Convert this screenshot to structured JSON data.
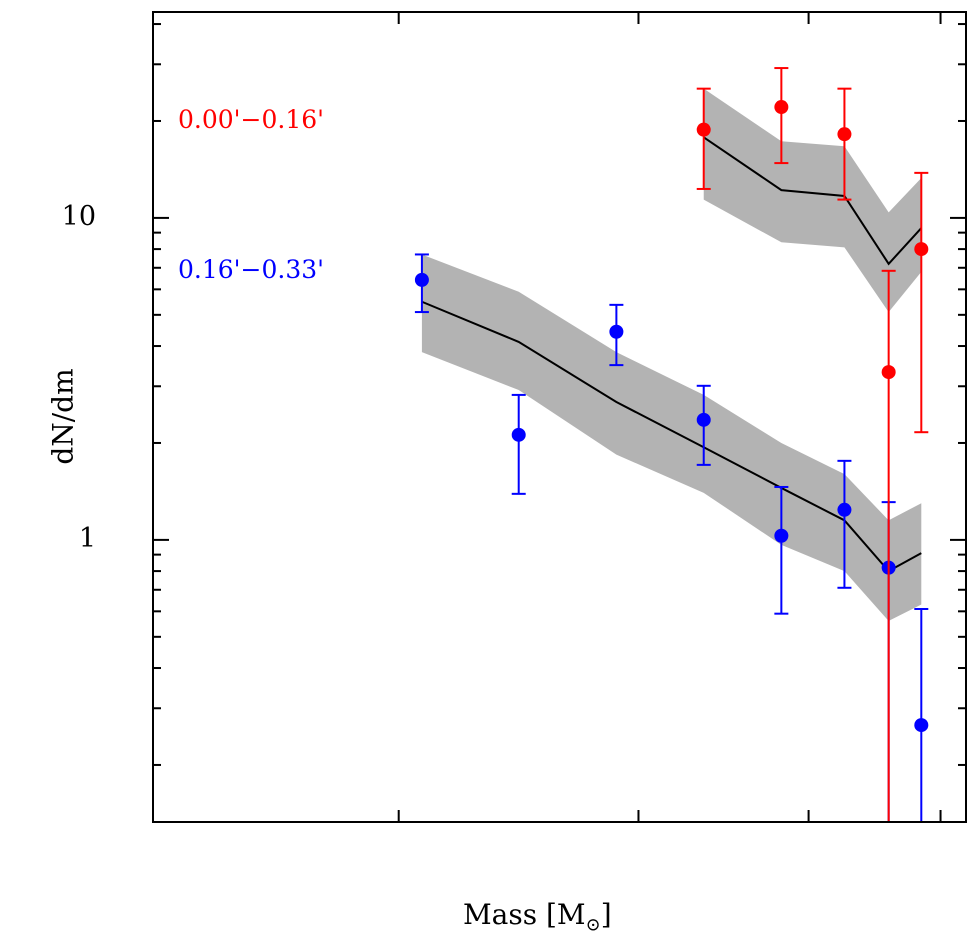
{
  "chart_data": {
    "type": "scatter",
    "title": "",
    "xlabel": "Mass [M",
    "xlabel_sub": "⊙",
    "xlabel_close": "]",
    "ylabel": "dN/dm",
    "xscale": "log",
    "yscale": "log",
    "xlim": [
      1.32,
      5.22
    ],
    "ylim": [
      0.133,
      43.6
    ],
    "x_major_ticks": [
      2,
      3,
      4,
      5
    ],
    "y_tick_labels": [
      {
        "value": 1,
        "label": "1"
      },
      {
        "value": 10,
        "label": "10"
      }
    ],
    "y_minor_ticks": [
      0.2,
      0.3,
      0.4,
      0.5,
      0.6,
      0.7,
      0.8,
      0.9,
      2,
      3,
      4,
      5,
      6,
      7,
      8,
      9,
      20,
      30,
      40
    ],
    "series": [
      {
        "name": "0.00'−0.16'",
        "color": "#ff0000",
        "points": [
          {
            "x": 3.35,
            "y": 18.8,
            "err_hi": 25.2,
            "err_lo": 12.3
          },
          {
            "x": 3.82,
            "y": 22.1,
            "err_hi": 29.2,
            "err_lo": 14.8
          },
          {
            "x": 4.25,
            "y": 18.2,
            "err_hi": 25.2,
            "err_lo": 11.4
          },
          {
            "x": 4.58,
            "y": 3.32,
            "err_hi": 6.85,
            "err_lo": 0.01
          },
          {
            "x": 4.84,
            "y": 8.0,
            "err_hi": 13.8,
            "err_lo": 2.16
          }
        ],
        "model": {
          "x": [
            3.35,
            3.82,
            4.25,
            4.58,
            4.84
          ],
          "y": [
            17.8,
            12.2,
            11.7,
            7.2,
            9.3
          ],
          "upper": [
            25.2,
            17.3,
            16.7,
            10.4,
            13.3
          ],
          "lower": [
            11.4,
            8.4,
            8.1,
            5.1,
            6.8
          ]
        }
      },
      {
        "name": "0.16'−0.33'",
        "color": "#0000ff",
        "points": [
          {
            "x": 2.08,
            "y": 6.42,
            "err_hi": 7.7,
            "err_lo": 5.1
          },
          {
            "x": 2.45,
            "y": 2.12,
            "err_hi": 2.82,
            "err_lo": 1.39
          },
          {
            "x": 2.89,
            "y": 4.43,
            "err_hi": 5.37,
            "err_lo": 3.49
          },
          {
            "x": 3.35,
            "y": 2.36,
            "err_hi": 3.01,
            "err_lo": 1.71
          },
          {
            "x": 3.82,
            "y": 1.03,
            "err_hi": 1.46,
            "err_lo": 0.59
          },
          {
            "x": 4.25,
            "y": 1.24,
            "err_hi": 1.76,
            "err_lo": 0.71
          },
          {
            "x": 4.58,
            "y": 0.82,
            "err_hi": 1.31,
            "err_lo": 0.01
          },
          {
            "x": 4.84,
            "y": 0.266,
            "err_hi": 0.61,
            "err_lo": 0.01
          }
        ],
        "model": {
          "x": [
            2.08,
            2.45,
            2.89,
            3.35,
            3.82,
            4.25,
            4.58,
            4.84
          ],
          "y": [
            5.49,
            4.12,
            2.68,
            1.94,
            1.45,
            1.15,
            0.8,
            0.91
          ],
          "upper": [
            7.7,
            5.9,
            3.83,
            2.82,
            2.0,
            1.6,
            1.15,
            1.3
          ],
          "lower": [
            3.83,
            2.92,
            1.84,
            1.4,
            0.965,
            0.8,
            0.56,
            0.63
          ]
        }
      }
    ],
    "band_color": "#b3b3b3",
    "model_color": "#000000"
  }
}
